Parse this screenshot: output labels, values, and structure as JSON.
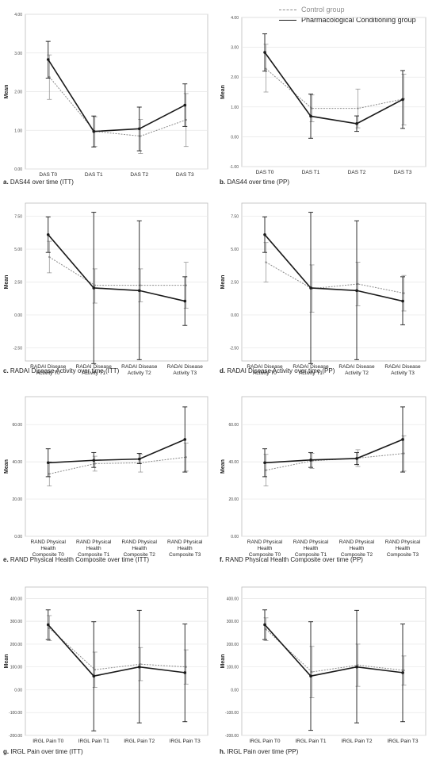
{
  "legend": {
    "control_label": "Control group",
    "treatment_label": "Pharmacological Conditioning group"
  },
  "colors": {
    "treatment": "#1a1a1a",
    "control": "#8c8c8c",
    "grid": "#e6e6e6",
    "frame": "#bdbdbd"
  },
  "chart_data": [
    {
      "type": "line",
      "caption_letter": "a.",
      "caption_text": "DAS44 over time (ITT)",
      "ylabel": "Mean",
      "categories": [
        "DAS T0",
        "DAS T1",
        "DAS T2",
        "DAS T3"
      ],
      "ylim": [
        0,
        4
      ],
      "yticks": [
        "0.00",
        "1.00",
        "2.00",
        "3.00",
        "4.00"
      ],
      "grid": true,
      "series": [
        {
          "name": "Pharmacological Conditioning group",
          "style": "solid",
          "values": [
            2.83,
            0.97,
            1.04,
            1.65
          ],
          "err_low": [
            2.35,
            0.57,
            0.47,
            1.1
          ],
          "err_high": [
            3.3,
            1.37,
            1.6,
            2.2
          ]
        },
        {
          "name": "Control group",
          "style": "dashed",
          "values": [
            2.38,
            0.97,
            0.85,
            1.27
          ],
          "err_low": [
            1.8,
            0.58,
            0.4,
            0.58
          ],
          "err_high": [
            2.95,
            1.35,
            1.28,
            1.95
          ]
        }
      ]
    },
    {
      "type": "line",
      "caption_letter": "b.",
      "caption_text": "DAS44 over time (PP)",
      "ylabel": "Mean",
      "categories": [
        "DAS T0",
        "DAS T1",
        "DAS T2",
        "DAS T3"
      ],
      "ylim": [
        -1,
        4
      ],
      "yticks": [
        "-1.00",
        "0.00",
        "1.00",
        "2.00",
        "3.00",
        "4.00"
      ],
      "grid": true,
      "series": [
        {
          "name": "Pharmacological Conditioning group",
          "style": "solid",
          "values": [
            2.83,
            0.69,
            0.44,
            1.25
          ],
          "err_low": [
            2.2,
            -0.05,
            0.18,
            0.28
          ],
          "err_high": [
            3.45,
            1.43,
            0.7,
            2.22
          ]
        },
        {
          "name": "Control group",
          "style": "dashed",
          "values": [
            2.28,
            0.95,
            0.95,
            1.27
          ],
          "err_low": [
            1.5,
            0.5,
            0.3,
            0.4
          ],
          "err_high": [
            3.1,
            1.4,
            1.6,
            2.1
          ]
        }
      ]
    },
    {
      "type": "line",
      "caption_letter": "c.",
      "caption_text": "RADAI Disease Activity over time (ITT)",
      "ylabel": "Mean",
      "categories": [
        [
          "RADAI Disease",
          "Activity T0"
        ],
        [
          "RADAI Disease",
          "Activity T1"
        ],
        [
          "RADAI Disease",
          "Activity T2"
        ],
        [
          "RADAI Disease",
          "Activity T3"
        ]
      ],
      "ylim": [
        -3.5,
        8.5
      ],
      "yticks": [
        "-2.50",
        "0.00",
        "2.50",
        "5.00",
        "7.50"
      ],
      "ytick_values": [
        -2.5,
        0,
        2.5,
        5,
        7.5
      ],
      "grid": true,
      "series": [
        {
          "name": "Pharmacological Conditioning group",
          "style": "solid",
          "values": [
            6.1,
            2.05,
            1.85,
            1.05
          ],
          "err_low": [
            4.75,
            -3.7,
            -3.4,
            -0.8
          ],
          "err_high": [
            7.45,
            7.8,
            7.15,
            2.9
          ]
        },
        {
          "name": "Control group",
          "style": "dashed",
          "values": [
            4.4,
            2.25,
            2.25,
            2.25
          ],
          "err_low": [
            3.2,
            0.9,
            1.0,
            0.5
          ],
          "err_high": [
            5.6,
            3.5,
            3.5,
            4.0
          ]
        }
      ]
    },
    {
      "type": "line",
      "caption_letter": "d.",
      "caption_text": "RADAI Disease Activity over time (PP)",
      "ylabel": "Mean",
      "categories": [
        [
          "RADAI Disease",
          "Activity T0"
        ],
        [
          "RADAI Disease",
          "Activity T1"
        ],
        [
          "RADAI Disease",
          "Activity T2"
        ],
        [
          "RADAI Disease",
          "Activity T3"
        ]
      ],
      "ylim": [
        -3.5,
        8.5
      ],
      "yticks": [
        "-2.50",
        "0.00",
        "2.50",
        "5.00",
        "7.50"
      ],
      "ytick_values": [
        -2.5,
        0,
        2.5,
        5,
        7.5
      ],
      "grid": true,
      "series": [
        {
          "name": "Pharmacological Conditioning group",
          "style": "solid",
          "values": [
            6.1,
            2.05,
            1.85,
            1.05
          ],
          "err_low": [
            4.75,
            -3.7,
            -3.4,
            -0.75
          ],
          "err_high": [
            7.45,
            7.8,
            7.15,
            2.9
          ]
        },
        {
          "name": "Control group",
          "style": "dashed",
          "values": [
            4.0,
            2.0,
            2.35,
            1.65
          ],
          "err_low": [
            2.5,
            0.2,
            0.7,
            0.3
          ],
          "err_high": [
            5.5,
            3.8,
            4.0,
            3.0
          ]
        }
      ]
    },
    {
      "type": "line",
      "caption_letter": "e.",
      "caption_text": "RAND Physical Health Composite over time (ITT)",
      "ylabel": "Mean",
      "categories": [
        [
          "RAND Physical",
          "Health",
          "Composite T0"
        ],
        [
          "RAND Physical",
          "Health",
          "Composite T1"
        ],
        [
          "RAND Physical",
          "Health",
          "Composite T2"
        ],
        [
          "RAND Physical",
          "Health",
          "Composite T3"
        ]
      ],
      "ylim": [
        0,
        75
      ],
      "yticks": [
        "0.00",
        "20.00",
        "40.00",
        "60.00"
      ],
      "ytick_values": [
        0,
        20,
        40,
        60
      ],
      "grid": true,
      "series": [
        {
          "name": "Pharmacological Conditioning group",
          "style": "solid",
          "values": [
            39.5,
            40.8,
            41.5,
            52.0
          ],
          "err_low": [
            32.0,
            37.0,
            39.0,
            34.5
          ],
          "err_high": [
            47.0,
            45.0,
            44.5,
            69.5
          ]
        },
        {
          "name": "Control group",
          "style": "dashed",
          "values": [
            33.5,
            39.0,
            39.5,
            42.5
          ],
          "err_low": [
            27.0,
            35.0,
            34.5,
            35.0
          ],
          "err_high": [
            40.0,
            43.0,
            44.0,
            50.0
          ]
        }
      ]
    },
    {
      "type": "line",
      "caption_letter": "f.",
      "caption_text": "RAND Physical Health Composite over time (PP)",
      "ylabel": "Mean",
      "categories": [
        [
          "RAND Physical",
          "Health",
          "Composite T0"
        ],
        [
          "RAND Physical",
          "Health",
          "Composite T1"
        ],
        [
          "RAND Physical",
          "Health",
          "Composite T2"
        ],
        [
          "RAND Physical",
          "Health",
          "Composite T3"
        ]
      ],
      "ylim": [
        0,
        75
      ],
      "yticks": [
        "0.00",
        "20.00",
        "40.00",
        "60.00"
      ],
      "ytick_values": [
        0,
        20,
        40,
        60
      ],
      "grid": true,
      "series": [
        {
          "name": "Pharmacological Conditioning group",
          "style": "solid",
          "values": [
            39.5,
            41.0,
            41.8,
            52.0
          ],
          "err_low": [
            32.0,
            37.0,
            38.5,
            34.5
          ],
          "err_high": [
            47.0,
            45.0,
            45.0,
            69.5
          ]
        },
        {
          "name": "Control group",
          "style": "dashed",
          "values": [
            35.5,
            40.5,
            42.0,
            44.5
          ],
          "err_low": [
            27.0,
            36.5,
            37.5,
            35.0
          ],
          "err_high": [
            44.0,
            44.5,
            46.5,
            54.0
          ]
        }
      ]
    },
    {
      "type": "line",
      "caption_letter": "g.",
      "caption_text": "IRGL Pain over time (ITT)",
      "ylabel": "Mean",
      "categories": [
        "IRGL Pain T0",
        "IRGL Pain T1",
        "IRGL Pain T2",
        "IRGL Pain T3"
      ],
      "ylim": [
        -200,
        450
      ],
      "yticks": [
        "-200.00",
        "-100.00",
        "0.00",
        "100.00",
        "200.00",
        "300.00",
        "400.00"
      ],
      "ytick_values": [
        -200,
        -100,
        0,
        100,
        200,
        300,
        400
      ],
      "grid": true,
      "series": [
        {
          "name": "Pharmacological Conditioning group",
          "style": "solid",
          "values": [
            285,
            60,
            100,
            75
          ],
          "err_low": [
            220,
            -180,
            -145,
            -140
          ],
          "err_high": [
            350,
            298,
            348,
            288
          ]
        },
        {
          "name": "Control group",
          "style": "dashed",
          "values": [
            270,
            88,
            112,
            100
          ],
          "err_low": [
            215,
            10,
            40,
            25
          ],
          "err_high": [
            325,
            165,
            185,
            175
          ]
        }
      ]
    },
    {
      "type": "line",
      "caption_letter": "h.",
      "caption_text": "IRGL Pain over time (PP)",
      "ylabel": "Mean",
      "categories": [
        "IRGL Pain T0",
        "IRGL Pain T1",
        "IRGL Pain T2",
        "IRGL Pain T3"
      ],
      "ylim": [
        -200,
        450
      ],
      "yticks": [
        "-200.00",
        "-100.00",
        "0.00",
        "100.00",
        "200.00",
        "300.00",
        "400.00"
      ],
      "ytick_values": [
        -200,
        -100,
        0,
        100,
        200,
        300,
        400
      ],
      "grid": true,
      "series": [
        {
          "name": "Pharmacological Conditioning group",
          "style": "solid",
          "values": [
            285,
            60,
            100,
            75
          ],
          "err_low": [
            220,
            -178,
            -145,
            -140
          ],
          "err_high": [
            350,
            298,
            348,
            288
          ]
        },
        {
          "name": "Control group",
          "style": "dashed",
          "values": [
            265,
            78,
            108,
            85
          ],
          "err_low": [
            215,
            -35,
            15,
            20
          ],
          "err_high": [
            315,
            190,
            200,
            148
          ]
        }
      ]
    }
  ]
}
